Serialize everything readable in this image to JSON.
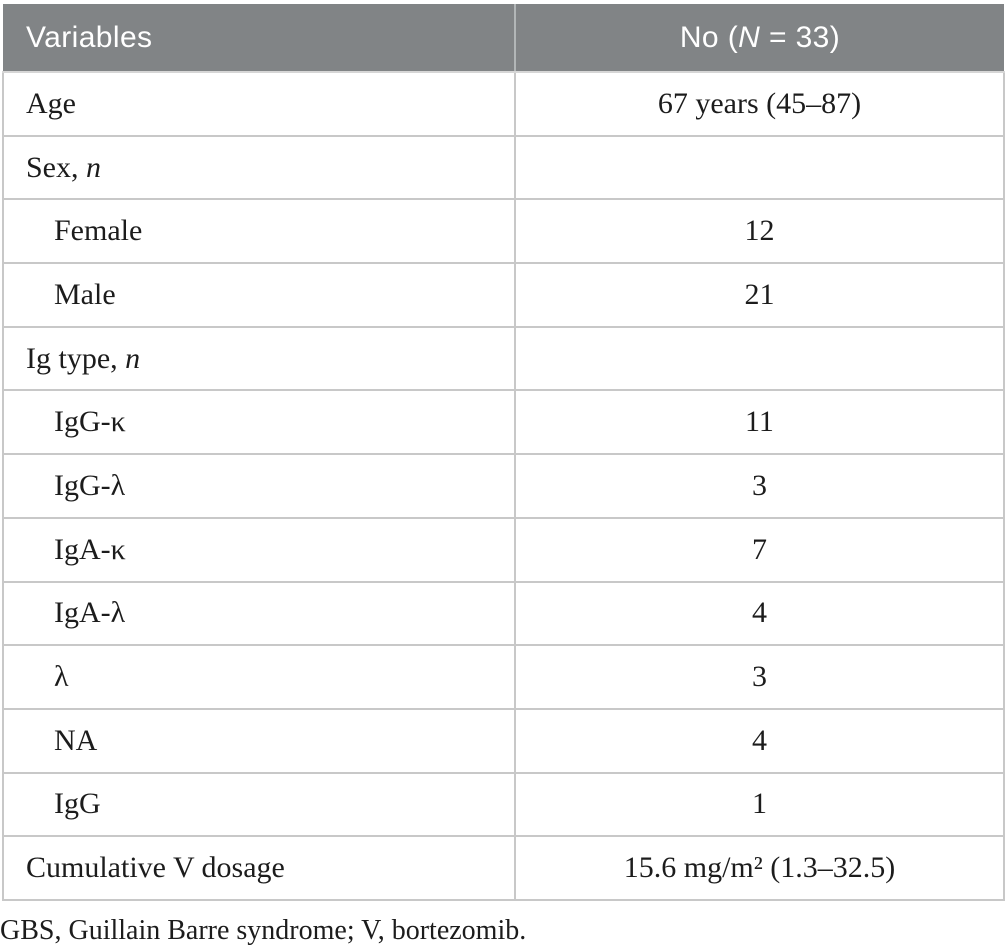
{
  "header": {
    "variables_label": "Variables",
    "count_prefix": "No (",
    "count_italic": "N",
    "count_suffix": " = 33)"
  },
  "rows": [
    {
      "label": "Age",
      "label_italic": "",
      "value": "67 years (45–87)"
    },
    {
      "label": "Sex, ",
      "label_italic": "n",
      "value": ""
    },
    {
      "label": "Female",
      "label_italic": "",
      "value": "12"
    },
    {
      "label": "Male",
      "label_italic": "",
      "value": "21"
    },
    {
      "label": "Ig type, ",
      "label_italic": "n",
      "value": ""
    },
    {
      "label": "IgG-κ",
      "label_italic": "",
      "value": "11"
    },
    {
      "label": "IgG-λ",
      "label_italic": "",
      "value": "3"
    },
    {
      "label": "IgA-κ",
      "label_italic": "",
      "value": "7"
    },
    {
      "label": "IgA-λ",
      "label_italic": "",
      "value": "4"
    },
    {
      "label": "λ",
      "label_italic": "",
      "value": "3"
    },
    {
      "label": "NA",
      "label_italic": "",
      "value": "4"
    },
    {
      "label": "IgG",
      "label_italic": "",
      "value": "1"
    },
    {
      "label": "Cumulative V dosage",
      "label_italic": "",
      "value": "15.6 mg/m² (1.3–32.5)"
    }
  ],
  "footnote": "GBS, Guillain Barre syndrome; V, bortezomib.",
  "colors": {
    "header_bg": "#818486",
    "header_text": "#ffffff",
    "header_divider": "#b2b6b7",
    "header_underline": "#d6d6d6",
    "line": "#c8c8c8",
    "text": "#1c1c1c"
  }
}
